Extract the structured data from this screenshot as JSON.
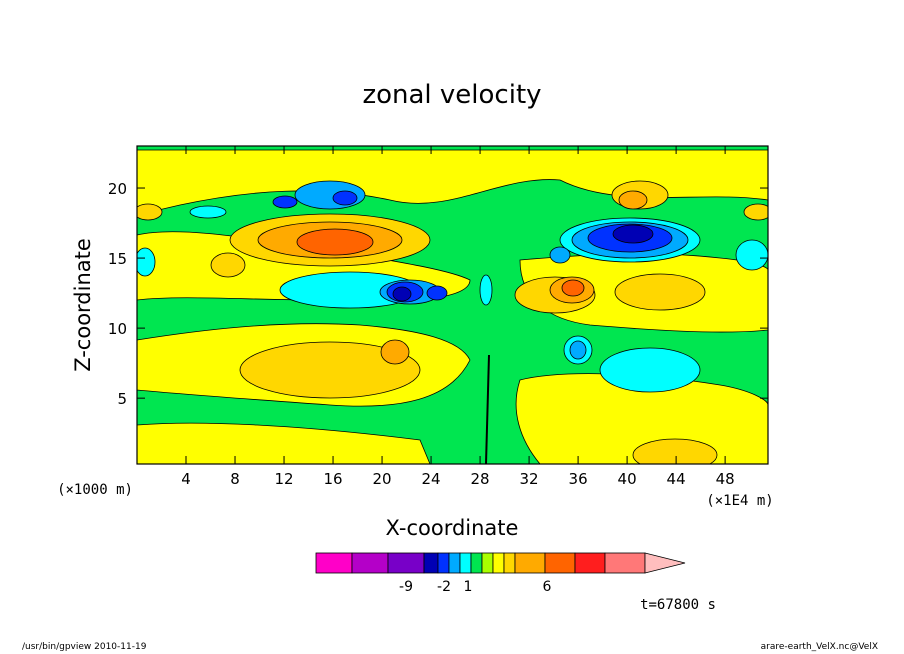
{
  "chart_data": {
    "type": "contour",
    "title": "zonal velocity",
    "xlabel": "X-coordinate",
    "ylabel": "Z-coordinate",
    "x_unit": "(×1E4 m)",
    "z_unit": "(×1000 m)",
    "xlim": [
      0,
      51.5
    ],
    "ylim": [
      0.3,
      23
    ],
    "x_ticks": [
      4,
      8,
      12,
      16,
      20,
      24,
      28,
      32,
      36,
      40,
      44,
      48
    ],
    "y_ticks": [
      5,
      10,
      15,
      20
    ],
    "colorbar": {
      "colors": [
        "#ff00c8",
        "#b400c8",
        "#7800c8",
        "#0000b4",
        "#0032ff",
        "#00aaff",
        "#00ffff",
        "#00e650",
        "#aaff00",
        "#ffff00",
        "#ffd700",
        "#ffaa00",
        "#ff6400",
        "#ff1e1e",
        "#ff7878",
        "#ffbebe"
      ],
      "tick_labels": [
        "-9",
        "-2",
        "1",
        "6"
      ],
      "extend": "max"
    },
    "time_label": "t=67800 s"
  },
  "footer": {
    "left": "/usr/bin/gpview  2010-11-19",
    "right": "arare-earth_VelX.nc@VelX"
  },
  "colors": {
    "background_green": "#00e650",
    "light_yellow": "#ffff00",
    "gold": "#ffd700",
    "orange": "#ffaa00",
    "dark_orange": "#ff6400",
    "red": "#ff1e1e",
    "cyan": "#00ffff",
    "sky": "#00aaff",
    "blue": "#0032ff",
    "navy": "#0000b4"
  }
}
